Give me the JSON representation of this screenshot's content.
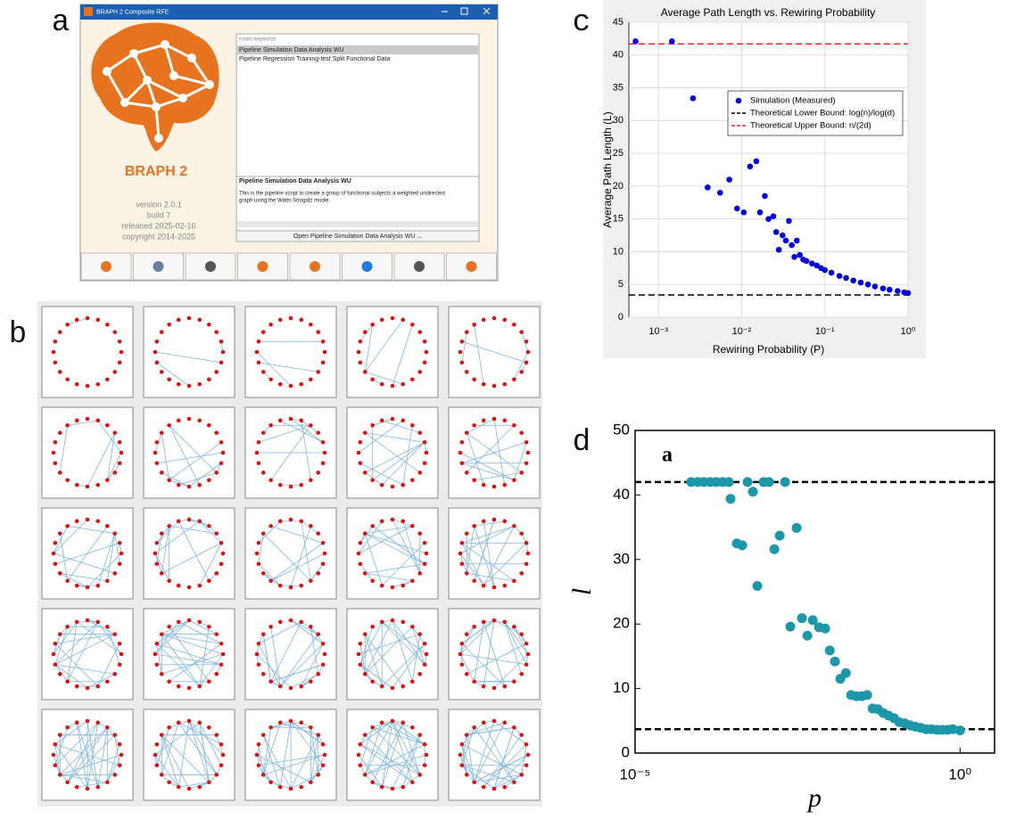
{
  "panel_labels": [
    "a",
    "b",
    "c",
    "d"
  ],
  "app": {
    "window_title": "BRAPH 2 Composite RFE",
    "logo_text": "BRAPH 2",
    "info": [
      "version  2.0.1",
      "build  7",
      "released  2025-02-16",
      "copyright  2014-2025"
    ],
    "search_placeholder": "insert keywords",
    "pipelines": [
      "Pipeline Simulation Data Analysis WU",
      "Pipeline Regression Training-test Split Functional Data"
    ],
    "selected_title": "Pipeline Simulation Data Analysis WU",
    "description_lines": [
      "This is the pipeline script to create a group of functional subjects a weighted undirected",
      "graph using the Watts-Strogatz model."
    ],
    "open_button": "Open Pipeline Simulation Data Analysis WU ..."
  },
  "chart_data": [
    {
      "type": "scatter",
      "title": "Average Path Length vs. Rewiring Probability",
      "x_label": "Rewiring Probability (P)",
      "y_label": "Average Path Length (L)",
      "x_log": true,
      "grid": true,
      "legend": "upper right",
      "xlim": [
        0.00044,
        1
      ],
      "ylim": [
        0,
        45
      ],
      "xticks": [
        {
          "value": 0.001,
          "label": "10⁻³"
        },
        {
          "value": 0.01,
          "label": "10⁻²"
        },
        {
          "value": 0.1,
          "label": "10⁻¹"
        },
        {
          "value": 1,
          "label": "10⁰"
        }
      ],
      "yticks": [
        0,
        5,
        10,
        15,
        20,
        25,
        30,
        35,
        40,
        45
      ],
      "series": [
        {
          "name": "Simulation (Measured)",
          "color": "#0000e0",
          "x": [
            0.00053,
            0.00145,
            0.0026,
            0.0039,
            0.0055,
            0.0071,
            0.0088,
            0.0106,
            0.0126,
            0.015,
            0.0166,
            0.019,
            0.021,
            0.024,
            0.026,
            0.028,
            0.031,
            0.034,
            0.037,
            0.04,
            0.043,
            0.046,
            0.05,
            0.055,
            0.06,
            0.07,
            0.08,
            0.09,
            0.1,
            0.12,
            0.15,
            0.18,
            0.22,
            0.27,
            0.33,
            0.4,
            0.5,
            0.6,
            0.75,
            0.9,
            1
          ],
          "values": [
            42.1,
            42.1,
            33.4,
            19.8,
            19,
            21,
            16.6,
            16,
            23,
            23.8,
            16,
            18.5,
            15,
            15.4,
            13,
            10.3,
            12.5,
            11.7,
            14.7,
            11,
            9.2,
            11.7,
            9.5,
            8.8,
            8.6,
            8.2,
            7.9,
            7.5,
            7.2,
            6.8,
            6.3,
            6,
            5.6,
            5.3,
            5,
            4.7,
            4.4,
            4.2,
            4,
            3.8,
            3.7
          ]
        }
      ],
      "reference_lines": [
        {
          "name": "Theoretical Lower Bound: log(n)/log(d)",
          "color": "#000000",
          "value": 3.4
        },
        {
          "name": "Theoretical Upper Bound: n/(2d)",
          "color": "#ff2020",
          "value": 41.7
        }
      ]
    },
    {
      "type": "scatter",
      "title": "a",
      "x_label": "p",
      "y_label": "l",
      "x_log": true,
      "grid": false,
      "xlim": [
        1e-05,
        3.4
      ],
      "ylim": [
        0,
        50
      ],
      "xticks": [
        {
          "value": 1e-05,
          "label": "10⁻⁵"
        },
        {
          "value": 1,
          "label": "10⁰"
        }
      ],
      "yticks": [
        0,
        10,
        20,
        30,
        40,
        50
      ],
      "series": [
        {
          "color": "#1a97a8",
          "x": [
            7.3e-05,
            9.2e-05,
            0.000114,
            0.000143,
            0.000178,
            0.000222,
            0.000277,
            0.000295,
            0.000368,
            0.000445,
            0.000538,
            0.00065,
            0.00076,
            0.00095,
            0.00115,
            0.00139,
            0.00168,
            0.00203,
            0.00245,
            0.00306,
            0.0037,
            0.00448,
            0.00542,
            0.00676,
            0.00843,
            0.0099,
            0.0119,
            0.0144,
            0.0175,
            0.0211,
            0.0255,
            0.0308,
            0.0373,
            0.0451,
            0.0545,
            0.0659,
            0.0796,
            0.0964,
            0.116,
            0.141,
            0.17,
            0.206,
            0.249,
            0.301,
            0.363,
            0.44,
            0.531,
            0.642,
            0.776,
            1
          ],
          "values": [
            42,
            42,
            42,
            42,
            42,
            42,
            42,
            39.4,
            32.5,
            32.2,
            42,
            40.5,
            25.9,
            42,
            42,
            31.6,
            33.7,
            42,
            19.6,
            34.9,
            20.9,
            18.2,
            20.6,
            19.5,
            19.3,
            15.9,
            14.2,
            11.5,
            12.4,
            9,
            8.8,
            8.8,
            9,
            6.9,
            6.8,
            6.2,
            5.8,
            5.4,
            4.8,
            4.6,
            4.3,
            4.1,
            3.9,
            3.7,
            3.7,
            3.6,
            3.6,
            3.6,
            3.7,
            3.5
          ]
        }
      ],
      "reference_lines": [
        {
          "color": "#000000",
          "value": 42
        },
        {
          "color": "#000000",
          "value": 3.7
        }
      ]
    }
  ]
}
